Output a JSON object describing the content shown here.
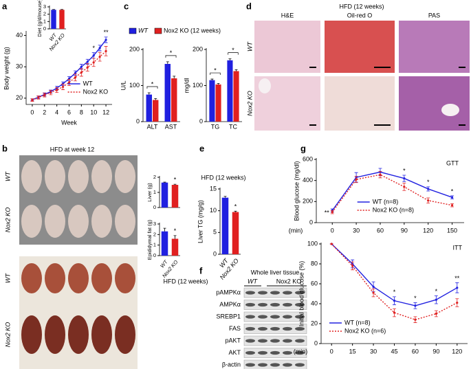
{
  "panels": [
    "a",
    "b",
    "c",
    "d",
    "e",
    "f",
    "g"
  ],
  "histology": {
    "title": "HFD (12 weeks)",
    "columns": [
      "H&E",
      "Oil-red O",
      "PAS"
    ],
    "rows": [
      "WT",
      "Nox2 KO"
    ]
  },
  "photos": {
    "title": "HFD at week 12",
    "rows": [
      "WT",
      "Nox2 KO"
    ],
    "liver_rows": [
      "WT",
      "Nox2 KO"
    ]
  },
  "blot": {
    "title": "Whole liver tissue",
    "condition": "HFD (12 weeks)",
    "groups": [
      "WT",
      "Nox2 KO"
    ],
    "proteins": [
      "pAMPKα",
      "AMPKα",
      "SREBP1",
      "FAS",
      "pAKT",
      "AKT",
      "β-actin"
    ]
  },
  "chart_data": [
    {
      "type": "line",
      "ylabel": "Body weight (g)",
      "xlabel": "Week",
      "x": [
        0,
        1,
        2,
        3,
        4,
        5,
        6,
        7,
        8,
        9,
        10,
        11,
        12
      ],
      "xlim": [
        -1,
        13
      ],
      "xticks": [
        0,
        2,
        4,
        6,
        8,
        10,
        12
      ],
      "ylim": [
        18,
        41
      ],
      "yticks": [
        20,
        30,
        40
      ],
      "legend": "lower right",
      "series": [
        {
          "name": "WT",
          "color": "#2020e0",
          "dash": false,
          "values": [
            19.5,
            20.3,
            21.2,
            22.1,
            23.2,
            24.6,
            26.2,
            28,
            30,
            31.6,
            33.6,
            36,
            38.6
          ],
          "errors": [
            0.3,
            0.4,
            0.5,
            0.5,
            0.6,
            0.6,
            0.7,
            0.7,
            0.8,
            0.8,
            0.9,
            0.9,
            0.9
          ]
        },
        {
          "name": "Nox2 KO",
          "color": "#e02020",
          "dash": true,
          "values": [
            19.4,
            20.2,
            21,
            21.8,
            22.6,
            23.6,
            25,
            26.6,
            28.2,
            29.8,
            31.4,
            33.2,
            35
          ],
          "errors": [
            0.4,
            0.5,
            0.6,
            0.7,
            0.8,
            0.9,
            1,
            1.1,
            1.2,
            1.2,
            1.3,
            1.4,
            1.5
          ]
        }
      ],
      "annotations": [
        {
          "x": 10,
          "text": "*"
        },
        {
          "x": 12,
          "text": "**"
        }
      ]
    },
    {
      "type": "bar",
      "ylabel": "Diet (g/d/mouse)",
      "categories": [
        "WT",
        "Nox2 KO"
      ],
      "values": [
        2.6,
        2.6
      ],
      "errors": [
        0.05,
        0.05
      ],
      "colors": [
        "#2020e0",
        "#e02020"
      ],
      "ylim": [
        0,
        3
      ],
      "yticks": [
        0,
        1,
        2,
        3
      ]
    },
    {
      "type": "bar",
      "ylabel": "U/L",
      "categories": [
        "ALT",
        "AST"
      ],
      "ylim": [
        0,
        200
      ],
      "yticks": [
        0,
        100,
        200
      ],
      "legend": "top",
      "series": [
        {
          "name": "WT",
          "color": "#2020e0",
          "values": [
            75,
            160
          ],
          "errors": [
            5,
            6
          ]
        },
        {
          "name": "Nox2 KO (12 weeks)",
          "color": "#e02020",
          "values": [
            60,
            120
          ],
          "errors": [
            4,
            6
          ]
        }
      ],
      "annotations": [
        {
          "x": 0,
          "text": "*"
        },
        {
          "x": 1,
          "text": "*"
        }
      ]
    },
    {
      "type": "bar",
      "ylabel": "mg/dl",
      "categories": [
        "TG",
        "TC"
      ],
      "ylim": [
        0,
        200
      ],
      "yticks": [
        0,
        100,
        200
      ],
      "series": [
        {
          "name": "WT",
          "color": "#2020e0",
          "values": [
            115,
            170
          ],
          "errors": [
            3,
            4
          ]
        },
        {
          "name": "Nox2 KO",
          "color": "#e02020",
          "values": [
            103,
            140
          ],
          "errors": [
            3,
            4
          ]
        }
      ],
      "annotations": [
        {
          "x": 0,
          "text": "*"
        },
        {
          "x": 1,
          "text": "*"
        }
      ]
    },
    {
      "type": "bar",
      "ylabel": "Liver (g)",
      "categories": [
        null,
        null
      ],
      "values": [
        1.65,
        1.5
      ],
      "errors": [
        0.03,
        0.04
      ],
      "colors": [
        "#2020e0",
        "#e02020"
      ],
      "ylim": [
        0,
        2
      ],
      "yticks": [
        0,
        1,
        2
      ],
      "annotations": [
        {
          "x": 1,
          "text": "*"
        }
      ]
    },
    {
      "type": "bar",
      "ylabel": "Epididymal fat (g)",
      "categories": [
        "WT",
        "Nox2 KO"
      ],
      "values": [
        2.3,
        1.6
      ],
      "errors": [
        0.3,
        0.3
      ],
      "colors": [
        "#2020e0",
        "#e02020"
      ],
      "ylim": [
        0,
        3
      ],
      "yticks": [
        0,
        1,
        2,
        3
      ],
      "annotations": [
        {
          "x": 1,
          "text": "*"
        }
      ]
    },
    {
      "type": "bar",
      "title": "HFD (12 weeks)",
      "ylabel": "Liver TG (mg/g)",
      "categories": [
        "WT",
        "Nox2 KO"
      ],
      "values": [
        13,
        9.7
      ],
      "errors": [
        0.3,
        0.2
      ],
      "colors": [
        "#2020e0",
        "#e02020"
      ],
      "ylim": [
        0,
        15
      ],
      "yticks": [
        0,
        5,
        10,
        15
      ],
      "annotations": [
        {
          "x": 1,
          "text": "*"
        }
      ]
    },
    {
      "type": "line",
      "title": "GTT",
      "ylabel": "Blood glucose (mg/dl)",
      "xlabel": "(min)",
      "x": [
        0,
        30,
        60,
        90,
        120,
        150
      ],
      "xlim": [
        -20,
        165
      ],
      "xticks": [
        0,
        30,
        60,
        90,
        120,
        150
      ],
      "ylim": [
        0,
        600
      ],
      "yticks": [
        0,
        200,
        400,
        600
      ],
      "legend": "lower center",
      "series": [
        {
          "name": "WT (n=8)",
          "color": "#2020e0",
          "dash": false,
          "values": [
            115,
            430,
            480,
            420,
            320,
            240
          ],
          "errors": [
            15,
            45,
            35,
            30,
            20,
            15
          ]
        },
        {
          "name": "Nox2 KO (n=8)",
          "color": "#e02020",
          "dash": true,
          "values": [
            100,
            410,
            455,
            340,
            210,
            165
          ],
          "errors": [
            15,
            30,
            30,
            35,
            25,
            15
          ]
        }
      ],
      "annotations": [
        {
          "x": 0,
          "text": "**"
        },
        {
          "x": 90,
          "text": "*"
        },
        {
          "x": 120,
          "text": "*"
        },
        {
          "x": 150,
          "text": "*"
        }
      ]
    },
    {
      "type": "line",
      "title": "ITT",
      "ylabel": "Initial blood glucose (%)",
      "xlabel": "(min)",
      "categories": [
        "0",
        "15",
        "30",
        "45",
        "60",
        "90",
        "120"
      ],
      "ylim": [
        0,
        100
      ],
      "yticks": [
        0,
        20,
        40,
        60,
        80,
        100
      ],
      "legend": "lower left",
      "series": [
        {
          "name": "WT (n=8)",
          "color": "#2020e0",
          "dash": false,
          "values": [
            100,
            80,
            57,
            43,
            38,
            44,
            56
          ],
          "errors": [
            0,
            4,
            5,
            4,
            3,
            4,
            5
          ]
        },
        {
          "name": "Nox2 KO (n=6)",
          "color": "#e02020",
          "dash": true,
          "values": [
            100,
            78,
            51,
            31,
            24,
            30,
            41
          ],
          "errors": [
            0,
            4,
            4,
            4,
            3,
            3,
            4
          ]
        }
      ],
      "annotations": [
        {
          "x": 3,
          "text": "*"
        },
        {
          "x": 4,
          "text": "*"
        },
        {
          "x": 5,
          "text": "*"
        },
        {
          "x": 6,
          "text": "**"
        }
      ]
    }
  ]
}
